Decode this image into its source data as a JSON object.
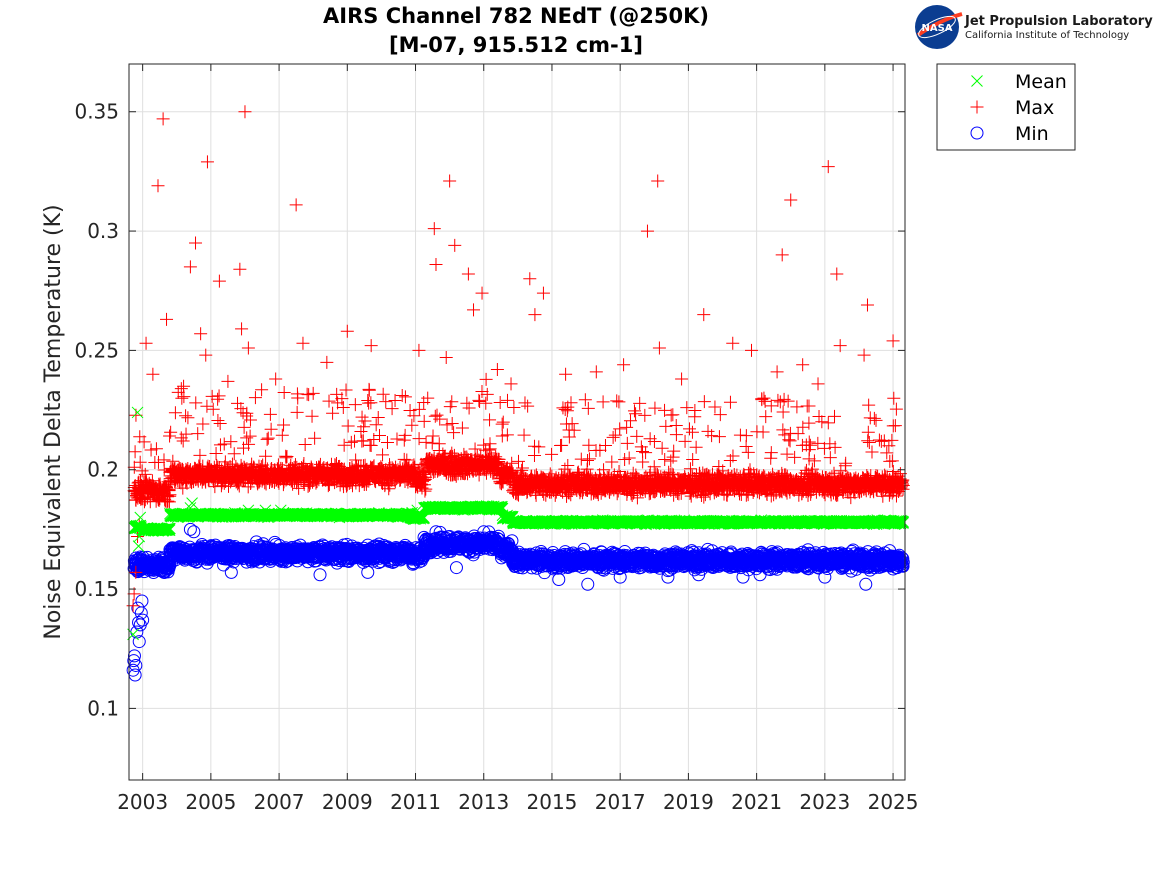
{
  "logo": {
    "meatball_text": "NASA",
    "org_name": "Jet Propulsion Laboratory",
    "org_sub": "California Institute of Technology"
  },
  "chart_data": {
    "type": "scatter",
    "title": "AIRS Channel 782 NEdT (@250K)",
    "subtitle": "[M-07, 915.512 cm-1]",
    "xlabel": "",
    "ylabel": "Noise Equivalent Delta Temperature (K)",
    "xlim": [
      2002.6,
      2025.35
    ],
    "ylim": [
      0.07,
      0.37
    ],
    "xticks": [
      2003,
      2005,
      2007,
      2009,
      2011,
      2013,
      2015,
      2017,
      2019,
      2021,
      2023,
      2025
    ],
    "yticks": [
      0.1,
      0.15,
      0.2,
      0.25,
      0.3,
      0.35
    ],
    "grid": true,
    "legend_position": "outside-top-right",
    "series": [
      {
        "name": "Mean",
        "marker": "x",
        "color": "#00ff00",
        "segments": [
          [
            2002.75,
            2002.95,
            0.176
          ],
          [
            2003.0,
            2003.8,
            0.175
          ],
          [
            2003.8,
            2010.85,
            0.181
          ],
          [
            2010.85,
            2011.25,
            0.18
          ],
          [
            2011.25,
            2013.55,
            0.184
          ],
          [
            2013.55,
            2013.85,
            0.18
          ],
          [
            2013.85,
            2025.3,
            0.178
          ]
        ],
        "points": [
          [
            2002.72,
            0.131
          ],
          [
            2002.8,
            0.176
          ],
          [
            2002.85,
            0.224
          ],
          [
            2002.88,
            0.168
          ],
          [
            2002.9,
            0.172
          ],
          [
            2002.93,
            0.18
          ],
          [
            2004.45,
            0.186
          ],
          [
            2004.4,
            0.184
          ],
          [
            2006.1,
            0.183
          ],
          [
            2006.6,
            0.183
          ],
          [
            2007.05,
            0.183
          ],
          [
            2010.9,
            0.182
          ],
          [
            2011.05,
            0.183
          ]
        ]
      },
      {
        "name": "Max",
        "marker": "+",
        "color": "#ff0000",
        "segments": [
          [
            2002.75,
            2003.8,
            0.191
          ],
          [
            2003.8,
            2011.0,
            0.198
          ],
          [
            2011.0,
            2011.3,
            0.196
          ],
          [
            2011.3,
            2013.45,
            0.202
          ],
          [
            2013.45,
            2013.85,
            0.198
          ],
          [
            2013.85,
            2025.3,
            0.194
          ]
        ],
        "points": [
          [
            2002.72,
            0.143
          ],
          [
            2002.75,
            0.148
          ],
          [
            2002.8,
            0.157
          ],
          [
            2002.85,
            0.172
          ],
          [
            2002.9,
            0.177
          ],
          [
            2003.45,
            0.319
          ],
          [
            2003.6,
            0.347
          ],
          [
            2003.7,
            0.263
          ],
          [
            2003.1,
            0.253
          ],
          [
            2004.4,
            0.285
          ],
          [
            2004.55,
            0.295
          ],
          [
            2004.7,
            0.257
          ],
          [
            2004.85,
            0.248
          ],
          [
            2004.9,
            0.329
          ],
          [
            2005.25,
            0.279
          ],
          [
            2005.85,
            0.284
          ],
          [
            2005.9,
            0.259
          ],
          [
            2006.0,
            0.35
          ],
          [
            2006.1,
            0.251
          ],
          [
            2007.5,
            0.311
          ],
          [
            2007.7,
            0.253
          ],
          [
            2008.4,
            0.245
          ],
          [
            2009.0,
            0.258
          ],
          [
            2009.7,
            0.252
          ],
          [
            2011.1,
            0.25
          ],
          [
            2011.55,
            0.301
          ],
          [
            2011.6,
            0.286
          ],
          [
            2011.9,
            0.247
          ],
          [
            2012.0,
            0.321
          ],
          [
            2012.15,
            0.294
          ],
          [
            2012.55,
            0.282
          ],
          [
            2012.7,
            0.267
          ],
          [
            2012.95,
            0.274
          ],
          [
            2013.4,
            0.242
          ],
          [
            2014.35,
            0.28
          ],
          [
            2014.5,
            0.265
          ],
          [
            2014.75,
            0.274
          ],
          [
            2017.8,
            0.3
          ],
          [
            2018.1,
            0.321
          ],
          [
            2018.15,
            0.251
          ],
          [
            2019.45,
            0.265
          ],
          [
            2020.3,
            0.253
          ],
          [
            2020.85,
            0.25
          ],
          [
            2021.75,
            0.29
          ],
          [
            2022.0,
            0.313
          ],
          [
            2022.35,
            0.244
          ],
          [
            2023.1,
            0.327
          ],
          [
            2023.35,
            0.282
          ],
          [
            2023.45,
            0.252
          ],
          [
            2024.25,
            0.269
          ],
          [
            2024.15,
            0.248
          ],
          [
            2025.0,
            0.254
          ],
          [
            2003.3,
            0.24
          ],
          [
            2004.2,
            0.235
          ],
          [
            2005.5,
            0.237
          ],
          [
            2006.9,
            0.238
          ],
          [
            2008.0,
            0.232
          ],
          [
            2009.6,
            0.229
          ],
          [
            2010.4,
            0.229
          ],
          [
            2013.8,
            0.236
          ],
          [
            2015.4,
            0.24
          ],
          [
            2016.3,
            0.241
          ],
          [
            2017.1,
            0.244
          ],
          [
            2018.8,
            0.238
          ],
          [
            2021.6,
            0.241
          ],
          [
            2022.8,
            0.236
          ]
        ]
      },
      {
        "name": "Min",
        "marker": "o",
        "color": "#0000ff",
        "segments": [
          [
            2002.75,
            2003.8,
            0.16
          ],
          [
            2003.8,
            2010.85,
            0.165
          ],
          [
            2010.85,
            2011.25,
            0.164
          ],
          [
            2011.25,
            2013.45,
            0.169
          ],
          [
            2013.45,
            2013.85,
            0.166
          ],
          [
            2013.85,
            2025.3,
            0.162
          ]
        ],
        "points": [
          [
            2002.72,
            0.116
          ],
          [
            2002.74,
            0.12
          ],
          [
            2002.76,
            0.122
          ],
          [
            2002.78,
            0.114
          ],
          [
            2002.8,
            0.118
          ],
          [
            2002.83,
            0.132
          ],
          [
            2002.86,
            0.142
          ],
          [
            2002.88,
            0.136
          ],
          [
            2002.9,
            0.128
          ],
          [
            2002.93,
            0.135
          ],
          [
            2002.96,
            0.14
          ],
          [
            2002.98,
            0.145
          ],
          [
            2003.0,
            0.137
          ],
          [
            2004.4,
            0.175
          ],
          [
            2004.5,
            0.174
          ],
          [
            2011.6,
            0.174
          ],
          [
            2013.0,
            0.174
          ],
          [
            2005.6,
            0.157
          ],
          [
            2008.2,
            0.156
          ],
          [
            2009.6,
            0.157
          ],
          [
            2012.2,
            0.159
          ],
          [
            2015.2,
            0.154
          ],
          [
            2016.05,
            0.152
          ],
          [
            2017.0,
            0.155
          ],
          [
            2018.4,
            0.155
          ],
          [
            2021.1,
            0.156
          ],
          [
            2023.0,
            0.155
          ],
          [
            2024.2,
            0.152
          ],
          [
            2019.3,
            0.156
          ],
          [
            2020.6,
            0.155
          ]
        ]
      }
    ]
  }
}
